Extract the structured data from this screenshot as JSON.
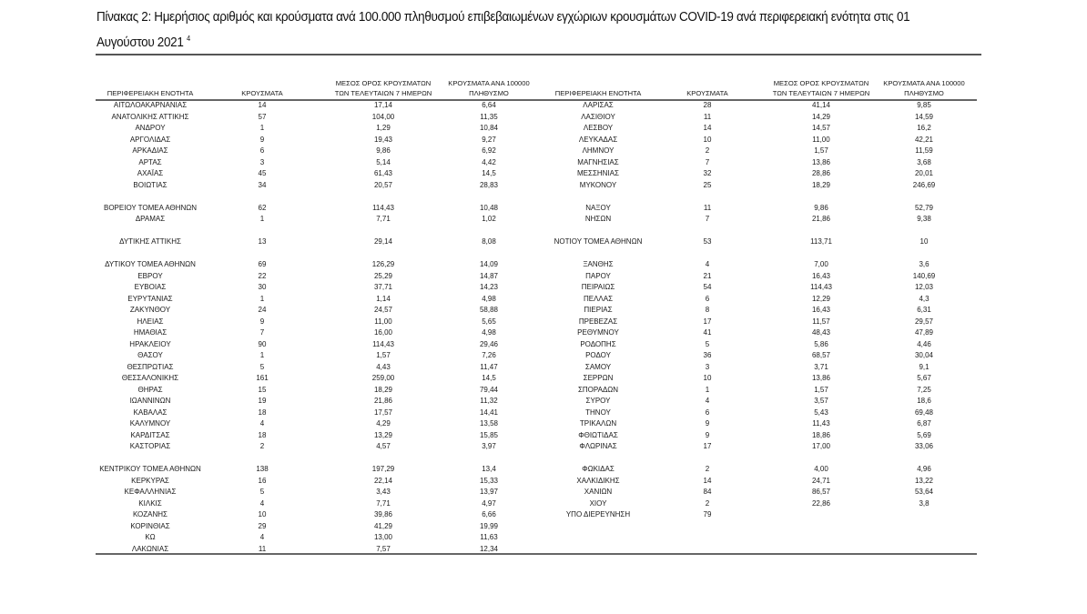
{
  "title": {
    "text": "Πίνακας 2: Ημερήσιος αριθμός και κρούσματα ανά 100.000 πληθυσμού επιβεβαιωμένων εγχώριων κρουσμάτων COVID-19 ανά περιφερειακή ενότητα στις 01 Αυγούστου 2021",
    "footnote": "4"
  },
  "headers": {
    "region": "ΠΕΡΙΦΕΡΕΙΑΚΗ ΕΝΟΤΗΤΑ",
    "cases": "ΚΡΟΥΣΜΑΤΑ",
    "avg_line1": "ΜΕΣΟΣ ΟΡΟΣ ΚΡΟΥΣΜΑΤΩΝ",
    "avg_line2": "ΤΩΝ ΤΕΛΕΥΤΑΙΩΝ 7 ΗΜΕΡΩΝ",
    "per100k_line1": "ΚΡΟΥΣΜΑΤΑ ΑΝΑ 100000",
    "per100k_line2": "ΠΛΗΘΥΣΜΟ"
  },
  "left_table": [
    [
      "ΑΙΤΩΛΟΑΚΑΡΝΑΝΙΑΣ",
      "14",
      "17,14",
      "6,64"
    ],
    [
      "ΑΝΑΤΟΛΙΚΗΣ ΑΤΤΙΚΗΣ",
      "57",
      "104,00",
      "11,35"
    ],
    [
      "ΑΝΔΡΟΥ",
      "1",
      "1,29",
      "10,84"
    ],
    [
      "ΑΡΓΟΛΙΔΑΣ",
      "9",
      "19,43",
      "9,27"
    ],
    [
      "ΑΡΚΑΔΙΑΣ",
      "6",
      "9,86",
      "6,92"
    ],
    [
      "ΑΡΤΑΣ",
      "3",
      "5,14",
      "4,42"
    ],
    [
      "ΑΧΑΪΑΣ",
      "45",
      "61,43",
      "14,5"
    ],
    [
      "ΒΟΙΩΤΙΑΣ",
      "34",
      "20,57",
      "28,83"
    ],
    null,
    [
      "ΒΟΡΕΙΟΥ ΤΟΜΕΑ ΑΘΗΝΩΝ",
      "62",
      "114,43",
      "10,48"
    ],
    [
      "ΔΡΑΜΑΣ",
      "1",
      "7,71",
      "1,02"
    ],
    null,
    [
      "ΔΥΤΙΚΗΣ ΑΤΤΙΚΗΣ",
      "13",
      "29,14",
      "8,08"
    ],
    null,
    [
      "ΔΥΤΙΚΟΥ ΤΟΜΕΑ ΑΘΗΝΩΝ",
      "69",
      "126,29",
      "14,09"
    ],
    [
      "ΕΒΡΟΥ",
      "22",
      "25,29",
      "14,87"
    ],
    [
      "ΕΥΒΟΙΑΣ",
      "30",
      "37,71",
      "14,23"
    ],
    [
      "ΕΥΡΥΤΑΝΙΑΣ",
      "1",
      "1,14",
      "4,98"
    ],
    [
      "ΖΑΚΥΝΘΟΥ",
      "24",
      "24,57",
      "58,88"
    ],
    [
      "ΗΛΕΙΑΣ",
      "9",
      "11,00",
      "5,65"
    ],
    [
      "ΗΜΑΘΙΑΣ",
      "7",
      "16,00",
      "4,98"
    ],
    [
      "ΗΡΑΚΛΕΙΟΥ",
      "90",
      "114,43",
      "29,46"
    ],
    [
      "ΘΑΣΟΥ",
      "1",
      "1,57",
      "7,26"
    ],
    [
      "ΘΕΣΠΡΩΤΙΑΣ",
      "5",
      "4,43",
      "11,47"
    ],
    [
      "ΘΕΣΣΑΛΟΝΙΚΗΣ",
      "161",
      "259,00",
      "14,5"
    ],
    [
      "ΘΗΡΑΣ",
      "15",
      "18,29",
      "79,44"
    ],
    [
      "ΙΩΑΝΝΙΝΩΝ",
      "19",
      "21,86",
      "11,32"
    ],
    [
      "ΚΑΒΑΛΑΣ",
      "18",
      "17,57",
      "14,41"
    ],
    [
      "ΚΑΛΥΜΝΟΥ",
      "4",
      "4,29",
      "13,58"
    ],
    [
      "ΚΑΡΔΙΤΣΑΣ",
      "18",
      "13,29",
      "15,85"
    ],
    [
      "ΚΑΣΤΟΡΙΑΣ",
      "2",
      "4,57",
      "3,97"
    ],
    null,
    [
      "ΚΕΝΤΡΙΚΟΥ ΤΟΜΕΑ ΑΘΗΝΩΝ",
      "138",
      "197,29",
      "13,4"
    ],
    [
      "ΚΕΡΚΥΡΑΣ",
      "16",
      "22,14",
      "15,33"
    ],
    [
      "ΚΕΦΑΛΛΗΝΙΑΣ",
      "5",
      "3,43",
      "13,97"
    ],
    [
      "ΚΙΛΚΙΣ",
      "4",
      "7,71",
      "4,97"
    ],
    [
      "ΚΟΖΑΝΗΣ",
      "10",
      "39,86",
      "6,66"
    ],
    [
      "ΚΟΡΙΝΘΙΑΣ",
      "29",
      "41,29",
      "19,99"
    ],
    [
      "ΚΩ",
      "4",
      "13,00",
      "11,63"
    ],
    [
      "ΛΑΚΩΝΙΑΣ",
      "11",
      "7,57",
      "12,34"
    ]
  ],
  "right_table": [
    [
      "ΛΑΡΙΣΑΣ",
      "28",
      "41,14",
      "9,85"
    ],
    [
      "ΛΑΣΙΘΙΟΥ",
      "11",
      "14,29",
      "14,59"
    ],
    [
      "ΛΕΣΒΟΥ",
      "14",
      "14,57",
      "16,2"
    ],
    [
      "ΛΕΥΚΑΔΑΣ",
      "10",
      "11,00",
      "42,21"
    ],
    [
      "ΛΗΜΝΟΥ",
      "2",
      "1,57",
      "11,59"
    ],
    [
      "ΜΑΓΝΗΣΙΑΣ",
      "7",
      "13,86",
      "3,68"
    ],
    [
      "ΜΕΣΣΗΝΙΑΣ",
      "32",
      "28,86",
      "20,01"
    ],
    [
      "ΜΥΚΟΝΟΥ",
      "25",
      "18,29",
      "246,69"
    ],
    null,
    [
      "ΝΑΞΟΥ",
      "11",
      "9,86",
      "52,79"
    ],
    [
      "ΝΗΣΩΝ",
      "7",
      "21,86",
      "9,38"
    ],
    null,
    [
      "ΝΟΤΙΟΥ ΤΟΜΕΑ ΑΘΗΝΩΝ",
      "53",
      "113,71",
      "10"
    ],
    null,
    [
      "ΞΑΝΘΗΣ",
      "4",
      "7,00",
      "3,6"
    ],
    [
      "ΠΑΡΟΥ",
      "21",
      "16,43",
      "140,69"
    ],
    [
      "ΠΕΙΡΑΙΩΣ",
      "54",
      "114,43",
      "12,03"
    ],
    [
      "ΠΕΛΛΑΣ",
      "6",
      "12,29",
      "4,3"
    ],
    [
      "ΠΙΕΡΙΑΣ",
      "8",
      "16,43",
      "6,31"
    ],
    [
      "ΠΡΕΒΕΖΑΣ",
      "17",
      "11,57",
      "29,57"
    ],
    [
      "ΡΕΘΥΜΝΟΥ",
      "41",
      "48,43",
      "47,89"
    ],
    [
      "ΡΟΔΟΠΗΣ",
      "5",
      "5,86",
      "4,46"
    ],
    [
      "ΡΟΔΟΥ",
      "36",
      "68,57",
      "30,04"
    ],
    [
      "ΣΑΜΟΥ",
      "3",
      "3,71",
      "9,1"
    ],
    [
      "ΣΕΡΡΩΝ",
      "10",
      "13,86",
      "5,67"
    ],
    [
      "ΣΠΟΡΑΔΩΝ",
      "1",
      "1,57",
      "7,25"
    ],
    [
      "ΣΥΡΟΥ",
      "4",
      "3,57",
      "18,6"
    ],
    [
      "ΤΗΝΟΥ",
      "6",
      "5,43",
      "69,48"
    ],
    [
      "ΤΡΙΚΑΛΩΝ",
      "9",
      "11,43",
      "6,87"
    ],
    [
      "ΦΘΙΩΤΙΔΑΣ",
      "9",
      "18,86",
      "5,69"
    ],
    [
      "ΦΛΩΡΙΝΑΣ",
      "17",
      "17,00",
      "33,06"
    ],
    null,
    [
      "ΦΩΚΙΔΑΣ",
      "2",
      "4,00",
      "4,96"
    ],
    [
      "ΧΑΛΚΙΔΙΚΗΣ",
      "14",
      "24,71",
      "13,22"
    ],
    [
      "ΧΑΝΙΩΝ",
      "84",
      "86,57",
      "53,64"
    ],
    [
      "ΧΙΟΥ",
      "2",
      "22,86",
      "3,8"
    ],
    [
      "ΥΠΟ ΔΙΕΡΕΥΝΗΣΗ",
      "79",
      "",
      ""
    ]
  ]
}
